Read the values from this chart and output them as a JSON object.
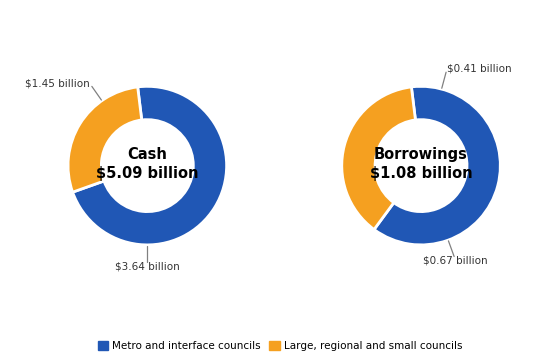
{
  "chart1": {
    "title": "Cash\n$5.09 billion",
    "values": [
      3.64,
      1.45
    ],
    "colors": [
      "#2057b5",
      "#f5a020"
    ],
    "labels": [
      "$3.64 billion",
      "$1.45 billion"
    ],
    "annotation_angles": [
      270,
      125
    ]
  },
  "chart2": {
    "title": "Borrowings\n$1.08 billion",
    "values": [
      0.67,
      0.41
    ],
    "colors": [
      "#2057b5",
      "#f5a020"
    ],
    "labels": [
      "$0.67 billion",
      "$0.41 billion"
    ],
    "annotation_angles": [
      290,
      75
    ]
  },
  "legend_labels": [
    "Metro and interface councils",
    "Large, regional and small councils"
  ],
  "legend_colors": [
    "#2057b5",
    "#f5a020"
  ],
  "bg_color": "#ffffff"
}
